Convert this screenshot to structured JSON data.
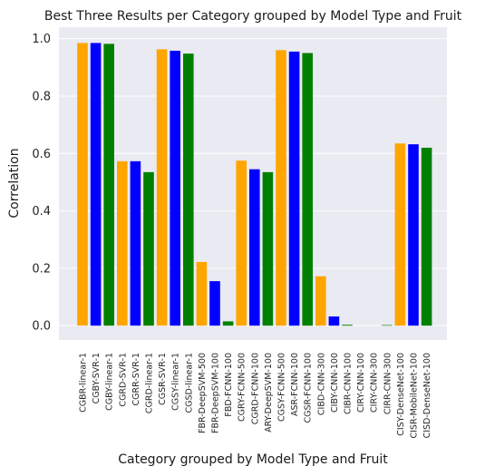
{
  "colors": {
    "background": "#eaeaf2",
    "grid": "#ffffff",
    "bar_cycle": [
      "#ffa500",
      "#0000ff",
      "#008000"
    ]
  },
  "chart_data": {
    "type": "bar",
    "title": "Best Three Results per Category grouped by Model Type and Fruit",
    "xlabel": "Category grouped by Model Type and Fruit",
    "ylabel": "Correlation",
    "ylim": [
      -0.05,
      1.04
    ],
    "yticks": [
      "0.0",
      "0.2",
      "0.4",
      "0.6",
      "0.8",
      "1.0"
    ],
    "grid": true,
    "categories": [
      "CGBR-linear-1",
      "CGBY-SVR-1",
      "CGBY-linear-1",
      "CGRD-SVR-1",
      "CGRR-SVR-1",
      "CGRD-linear-1",
      "CGSR-SVR-1",
      "CGSY-linear-1",
      "CGSD-linear-1",
      "FBR-DeepSVM-500",
      "FBR-DeepSVM-100",
      "FBD-FCNN-100",
      "CGRY-FCNN-500",
      "CGRD-FCNN-100",
      "ARY-DeepSVM-100",
      "CGSY-FCNN-500",
      "ASR-FCNN-100",
      "CGSR-FCNN-100",
      "CIBD-CNN-300",
      "CIBY-CNN-100",
      "CIBR-CNN-100",
      "CIRY-CNN-100",
      "CIRY-CNN-300",
      "CIRR-CNN-300",
      "CISY-DenseNet-100",
      "CISR-MobileNet-100",
      "CISD-DenseNet-100"
    ],
    "values": [
      0.985,
      0.985,
      0.982,
      0.573,
      0.573,
      0.535,
      0.963,
      0.958,
      0.948,
      0.222,
      0.155,
      0.015,
      0.575,
      0.545,
      0.535,
      0.96,
      0.955,
      0.95,
      0.172,
      0.032,
      0.003,
      0.0,
      0.0,
      0.002,
      0.635,
      0.632,
      0.62
    ]
  }
}
